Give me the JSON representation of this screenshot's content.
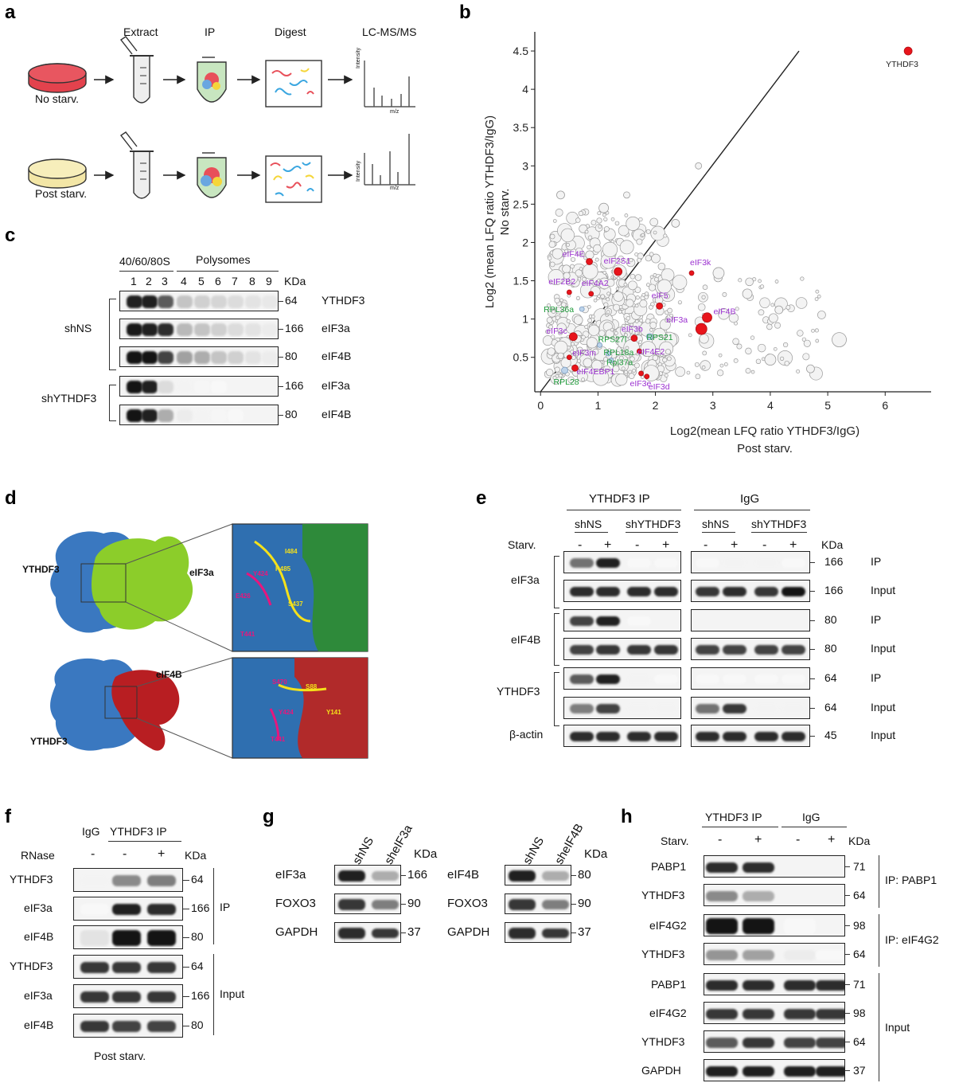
{
  "panels": {
    "a": "a",
    "b": "b",
    "c": "c",
    "d": "d",
    "e": "e",
    "f": "f",
    "g": "g",
    "h": "h"
  },
  "a": {
    "steps": [
      "Extract",
      "IP",
      "Digest",
      "LC-MS/MS"
    ],
    "conditions": [
      "No starv.",
      "Post starv."
    ],
    "ms_axis_y": "Intensity",
    "ms_axis_x": "m/z"
  },
  "b": {
    "xlabel_line1": "Log2(mean LFQ ratio YTHDF3/IgG)",
    "xlabel_line2": "Post starv.",
    "ylabel_line1": "Log2 (mean LFQ ratio YTHDF3/IgG)",
    "ylabel_line2": "No starv.",
    "chart_data": {
      "type": "scatter",
      "xlabel": "Log2(mean LFQ ratio YTHDF3/IgG) Post starv.",
      "ylabel": "Log2 (mean LFQ ratio YTHDF3/IgG) No starv.",
      "xlim": [
        -0.1,
        6.8
      ],
      "ylim": [
        0.05,
        4.75
      ],
      "xticks": [
        "0",
        "1",
        "2",
        "3",
        "4",
        "5",
        "6"
      ],
      "yticks": [
        "0.5",
        "1",
        "1.5",
        "2",
        "2.5",
        "3",
        "3.5",
        "4",
        "4.5"
      ],
      "diagonal": true,
      "highlighted": [
        {
          "label": "YTHDF3",
          "x": 6.4,
          "y": 4.5,
          "size": 5,
          "color": "#e8141b",
          "label_color": "#222"
        },
        {
          "label": "eIF4E",
          "x": 0.85,
          "y": 1.75,
          "size": 4,
          "color": "#e8141b",
          "label_color": "#9b30d0"
        },
        {
          "label": "eIF2S1",
          "x": 1.35,
          "y": 1.62,
          "size": 5,
          "color": "#e8141b",
          "label_color": "#9b30d0"
        },
        {
          "label": "eIF3k",
          "x": 2.63,
          "y": 1.6,
          "size": 3,
          "color": "#e8141b",
          "label_color": "#9b30d0"
        },
        {
          "label": "eIF2B2",
          "x": 0.5,
          "y": 1.35,
          "size": 3,
          "color": "#e8141b",
          "label_color": "#9b30d0"
        },
        {
          "label": "eIF4A2",
          "x": 0.88,
          "y": 1.33,
          "size": 3,
          "color": "#e8141b",
          "label_color": "#9b30d0"
        },
        {
          "label": "eIF5",
          "x": 2.07,
          "y": 1.17,
          "size": 4,
          "color": "#e8141b",
          "label_color": "#9b30d0"
        },
        {
          "label": "eIF4B",
          "x": 2.9,
          "y": 1.02,
          "size": 6,
          "color": "#e8141b",
          "label_color": "#9b30d0"
        },
        {
          "label": "eIF3a",
          "x": 2.8,
          "y": 0.87,
          "size": 7,
          "color": "#e8141b",
          "label_color": "#9b30d0"
        },
        {
          "label": "eIF3c",
          "x": 0.57,
          "y": 0.77,
          "size": 5,
          "color": "#e8141b",
          "label_color": "#9b30d0"
        },
        {
          "label": "eIF3b",
          "x": 1.63,
          "y": 0.75,
          "size": 4,
          "color": "#e8141b",
          "label_color": "#9b30d0"
        },
        {
          "label": "eIF4E2",
          "x": 1.72,
          "y": 0.58,
          "size": 3,
          "color": "#e8141b",
          "label_color": "#9b30d0"
        },
        {
          "label": "eIF3m",
          "x": 0.5,
          "y": 0.5,
          "size": 3,
          "color": "#e8141b",
          "label_color": "#9b30d0"
        },
        {
          "label": "eIF4EBP1",
          "x": 0.6,
          "y": 0.36,
          "size": 4,
          "color": "#e8141b",
          "label_color": "#9b30d0"
        },
        {
          "label": "eIF3e",
          "x": 1.75,
          "y": 0.29,
          "size": 3,
          "color": "#e8141b",
          "label_color": "#9b30d0"
        },
        {
          "label": "eIF3d",
          "x": 1.85,
          "y": 0.25,
          "size": 3,
          "color": "#e8141b",
          "label_color": "#9b30d0"
        },
        {
          "label": "RPL36a",
          "x": 0.72,
          "y": 1.13,
          "size": 3,
          "color": "#bcd3ea",
          "label_color": "#1e9a3a"
        },
        {
          "label": "RPS21",
          "x": 1.9,
          "y": 0.77,
          "size": 4,
          "color": "#bcd3ea",
          "label_color": "#1e9a3a"
        },
        {
          "label": "RPS27l",
          "x": 1.03,
          "y": 0.66,
          "size": 3,
          "color": "#bcd3ea",
          "label_color": "#1e9a3a"
        },
        {
          "label": "RPL18a",
          "x": 1.18,
          "y": 0.55,
          "size": 3,
          "color": "#bcd3ea",
          "label_color": "#1e9a3a"
        },
        {
          "label": "Rpl37a",
          "x": 1.23,
          "y": 0.46,
          "size": 3,
          "color": "#bcd3ea",
          "label_color": "#1e9a3a"
        },
        {
          "label": "RPL28",
          "x": 0.42,
          "y": 0.33,
          "size": 4,
          "color": "#bcd3ea",
          "label_color": "#1e9a3a"
        }
      ]
    }
  },
  "c": {
    "fraction_groups": [
      "40/60/80S",
      "Polysomes"
    ],
    "lanes": [
      "1",
      "2",
      "3",
      "4",
      "5",
      "6",
      "7",
      "8",
      "9"
    ],
    "kda_header": "KDa",
    "groups": [
      "shNS",
      "shYTHDF3"
    ],
    "rows": [
      {
        "kda": "64",
        "label": "YTHDF3"
      },
      {
        "kda": "166",
        "label": "eIF3a"
      },
      {
        "kda": "80",
        "label": "eIF4B"
      },
      {
        "kda": "166",
        "label": "eIF3a"
      },
      {
        "kda": "80",
        "label": "eIF4B"
      }
    ]
  },
  "d": {
    "top_left": "YTHDF3",
    "top_right": "eIF3a",
    "bottom_left": "YTHDF3",
    "bottom_right": "eIF4B",
    "top_residues": [
      "E426",
      "Y424",
      "T441",
      "I484",
      "R485",
      "S437"
    ],
    "bottom_residues": [
      "S470",
      "Y424",
      "T441",
      "S88",
      "Y141"
    ]
  },
  "e": {
    "groups": [
      "YTHDF3 IP",
      "IgG"
    ],
    "sub": [
      "shNS",
      "shYTHDF3",
      "shNS",
      "shYTHDF3"
    ],
    "starv_label": "Starv.",
    "signs": [
      "-",
      "+",
      "-",
      "+",
      "-",
      "+",
      "-",
      "+"
    ],
    "kda_header": "KDa",
    "proteins": [
      "eIF3a",
      "eIF4B",
      "YTHDF3",
      "β-actin"
    ],
    "rows": [
      {
        "kda": "166",
        "type": "IP"
      },
      {
        "kda": "166",
        "type": "Input"
      },
      {
        "kda": "80",
        "type": "IP"
      },
      {
        "kda": "80",
        "type": "Input"
      },
      {
        "kda": "64",
        "type": "IP"
      },
      {
        "kda": "64",
        "type": "Input"
      },
      {
        "kda": "45",
        "type": "Input"
      }
    ]
  },
  "f": {
    "groups": [
      "IgG",
      "YTHDF3 IP"
    ],
    "rnase_label": "RNase",
    "signs": [
      "-",
      "-",
      "+"
    ],
    "kda_header": "KDa",
    "rows": [
      {
        "label": "YTHDF3",
        "kda": "64"
      },
      {
        "label": "eIF3a",
        "kda": "166"
      },
      {
        "label": "eIF4B",
        "kda": "80"
      },
      {
        "label": "YTHDF3",
        "kda": "64"
      },
      {
        "label": "eIF3a",
        "kda": "166"
      },
      {
        "label": "eIF4B",
        "kda": "80"
      }
    ],
    "sections": [
      "IP",
      "Input"
    ],
    "footer": "Post starv."
  },
  "g": {
    "left": {
      "lanes": [
        "shNS",
        "sheIF3a"
      ],
      "kda_header": "KDa",
      "rows": [
        {
          "label": "eIF3a",
          "kda": "166"
        },
        {
          "label": "FOXO3",
          "kda": "90"
        },
        {
          "label": "GAPDH",
          "kda": "37"
        }
      ]
    },
    "right": {
      "lanes": [
        "shNS",
        "sheIF4B"
      ],
      "kda_header": "KDa",
      "rows": [
        {
          "label": "eIF4B",
          "kda": "80"
        },
        {
          "label": "FOXO3",
          "kda": "90"
        },
        {
          "label": "GAPDH",
          "kda": "37"
        }
      ]
    }
  },
  "h": {
    "groups": [
      "YTHDF3 IP",
      "IgG"
    ],
    "starv_label": "Starv.",
    "signs": [
      "-",
      "+",
      "-",
      "+"
    ],
    "kda_header": "KDa",
    "rows": [
      {
        "label": "PABP1",
        "kda": "71"
      },
      {
        "label": "YTHDF3",
        "kda": "64"
      },
      {
        "label": "eIF4G2",
        "kda": "98"
      },
      {
        "label": "YTHDF3",
        "kda": "64"
      },
      {
        "label": "PABP1",
        "kda": "71"
      },
      {
        "label": "eIF4G2",
        "kda": "98"
      },
      {
        "label": "YTHDF3",
        "kda": "64"
      },
      {
        "label": "GAPDH",
        "kda": "37"
      }
    ],
    "sections": [
      "IP: PABP1",
      "IP: eIF4G2",
      "Input"
    ]
  }
}
